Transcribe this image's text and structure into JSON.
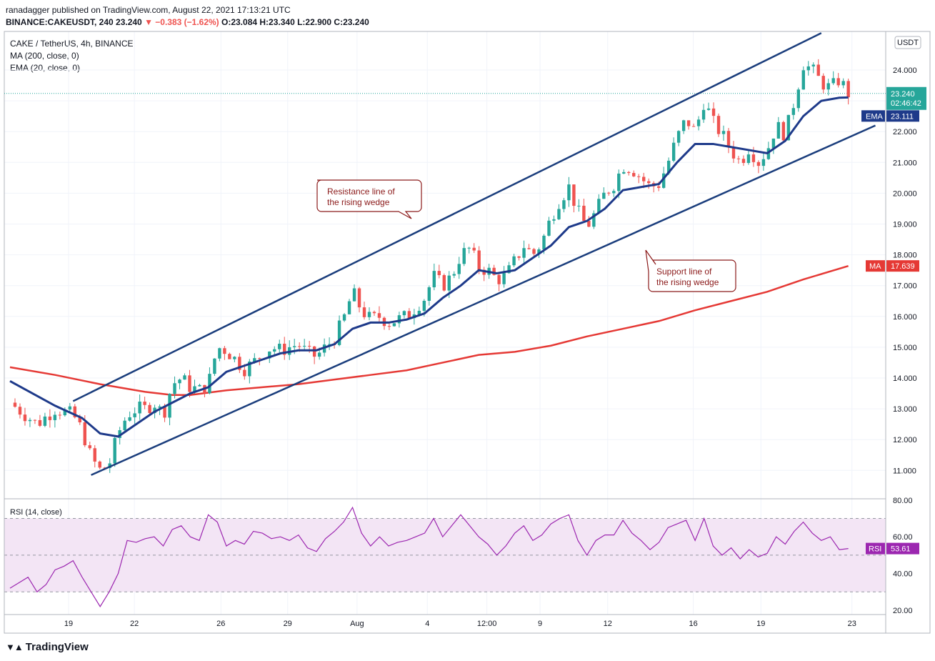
{
  "header": {
    "publish_line": "ranadagger published on TradingView.com, August 22, 2021 17:13:21 UTC",
    "symbol_line_prefix": "BINANCE:CAKEUSDT, 240  23.240 ",
    "change_text": "▼ −0.383 (−1.62%)",
    "ohlc_text": " O:23.084 H:23.340 L:22.900 C:23.240"
  },
  "legend": {
    "pair": "CAKE / TetherUS, 4h, BINANCE",
    "ma": "MA (200, close, 0)",
    "ema": "EMA (20, close, 0)"
  },
  "rsi_label": "RSI (14, close)",
  "brand": "TradingView",
  "colors": {
    "up": "#26a69a",
    "down": "#ef5350",
    "ema": "#1e3a8a",
    "ma": "#e53935",
    "rsi": "#9c27b0",
    "rsi_band": "#f3e5f5",
    "channel": "#1a3d7c",
    "note_border": "#8b1a1a"
  },
  "chart_data": [
    {
      "type": "candlestick",
      "yaxis_currency": "USDT",
      "yticks": [
        11.0,
        12.0,
        13.0,
        14.0,
        15.0,
        16.0,
        17.0,
        18.0,
        19.0,
        20.0,
        21.0,
        22.0,
        23.0,
        24.0
      ],
      "yticks_text": [
        "11.000",
        "12.000",
        "13.000",
        "14.000",
        "15.000",
        "16.000",
        "17.000",
        "18.000",
        "19.000",
        "20.000",
        "21.000",
        "22.000",
        "23.000",
        "24.000"
      ],
      "ylim": [
        10.2,
        25.0
      ],
      "xticks": [
        "19",
        "22",
        "26",
        "29",
        "Aug",
        "4",
        "12:00",
        "9",
        "12",
        "16",
        "19",
        "23"
      ],
      "price_tags": {
        "last": {
          "value": 23.24,
          "text": "23.240",
          "countdown": "02:46:42"
        },
        "ema": {
          "label": "EMA",
          "value": 23.111,
          "text": "23.111"
        },
        "ma": {
          "label": "MA",
          "value": 17.639,
          "text": "17.639"
        }
      },
      "close_path": [
        [
          0,
          13.2
        ],
        [
          3,
          12.5
        ],
        [
          5,
          13.0
        ],
        [
          7,
          12.8
        ],
        [
          8,
          12.3
        ],
        [
          9,
          11.4
        ],
        [
          10,
          11.0
        ],
        [
          11,
          11.2
        ],
        [
          12,
          12.2
        ],
        [
          13,
          12.8
        ],
        [
          14,
          13.0
        ],
        [
          15,
          13.0
        ],
        [
          16,
          13.2
        ],
        [
          17,
          12.8
        ],
        [
          18,
          13.8
        ],
        [
          19,
          14.0
        ],
        [
          20,
          13.7
        ],
        [
          21,
          13.6
        ],
        [
          22,
          13.8
        ],
        [
          23,
          15.0
        ],
        [
          24,
          14.9
        ],
        [
          25,
          14.6
        ],
        [
          26,
          14.3
        ],
        [
          27,
          14.5
        ],
        [
          28,
          14.8
        ],
        [
          29,
          15.0
        ],
        [
          30,
          14.9
        ],
        [
          31,
          15.0
        ],
        [
          32,
          15.1
        ],
        [
          33,
          14.8
        ],
        [
          34,
          14.7
        ],
        [
          35,
          15.0
        ],
        [
          36,
          15.3
        ],
        [
          37,
          15.9
        ],
        [
          38,
          16.8
        ],
        [
          39,
          16.2
        ],
        [
          40,
          15.9
        ],
        [
          41,
          16.0
        ],
        [
          42,
          15.8
        ],
        [
          43,
          15.9
        ],
        [
          44,
          16.0
        ],
        [
          45,
          16.3
        ],
        [
          46,
          16.6
        ],
        [
          47,
          17.3
        ],
        [
          48,
          17.0
        ],
        [
          49,
          17.3
        ],
        [
          50,
          18.0
        ],
        [
          51,
          18.2
        ],
        [
          52,
          17.6
        ],
        [
          53,
          17.5
        ],
        [
          54,
          17.2
        ],
        [
          55,
          17.3
        ],
        [
          56,
          17.8
        ],
        [
          57,
          18.3
        ],
        [
          58,
          18.0
        ],
        [
          59,
          18.4
        ],
        [
          60,
          19.2
        ],
        [
          61,
          19.8
        ],
        [
          62,
          20.2
        ],
        [
          63,
          19.4
        ],
        [
          64,
          18.9
        ],
        [
          65,
          19.4
        ],
        [
          66,
          20.0
        ],
        [
          67,
          20.3
        ],
        [
          68,
          20.9
        ],
        [
          69,
          20.8
        ],
        [
          70,
          20.5
        ],
        [
          71,
          20.2
        ],
        [
          72,
          20.3
        ],
        [
          73,
          21.0
        ],
        [
          74,
          21.8
        ],
        [
          75,
          22.4
        ],
        [
          76,
          22.0
        ],
        [
          77,
          23.0
        ],
        [
          78,
          22.3
        ],
        [
          79,
          21.9
        ],
        [
          80,
          21.4
        ],
        [
          81,
          21.0
        ],
        [
          82,
          21.5
        ],
        [
          83,
          21.0
        ],
        [
          84,
          21.4
        ],
        [
          85,
          22.2
        ],
        [
          86,
          21.9
        ],
        [
          87,
          23.0
        ],
        [
          88,
          24.2
        ],
        [
          89,
          24.0
        ],
        [
          90,
          23.6
        ],
        [
          91,
          23.4
        ],
        [
          92,
          23.7
        ],
        [
          93,
          23.24
        ]
      ],
      "ema20_path": [
        [
          0,
          13.9
        ],
        [
          5,
          13.1
        ],
        [
          8,
          12.7
        ],
        [
          10,
          12.2
        ],
        [
          12,
          12.1
        ],
        [
          14,
          12.5
        ],
        [
          16,
          12.9
        ],
        [
          18,
          13.2
        ],
        [
          20,
          13.5
        ],
        [
          22,
          13.7
        ],
        [
          24,
          14.2
        ],
        [
          26,
          14.4
        ],
        [
          28,
          14.6
        ],
        [
          30,
          14.8
        ],
        [
          32,
          14.9
        ],
        [
          34,
          14.9
        ],
        [
          36,
          15.1
        ],
        [
          38,
          15.6
        ],
        [
          40,
          15.8
        ],
        [
          42,
          15.8
        ],
        [
          44,
          15.9
        ],
        [
          46,
          16.1
        ],
        [
          48,
          16.6
        ],
        [
          50,
          17.0
        ],
        [
          52,
          17.5
        ],
        [
          54,
          17.4
        ],
        [
          56,
          17.5
        ],
        [
          58,
          17.9
        ],
        [
          60,
          18.3
        ],
        [
          62,
          18.9
        ],
        [
          64,
          19.1
        ],
        [
          66,
          19.5
        ],
        [
          68,
          20.1
        ],
        [
          70,
          20.2
        ],
        [
          72,
          20.3
        ],
        [
          74,
          21.0
        ],
        [
          76,
          21.6
        ],
        [
          78,
          21.6
        ],
        [
          80,
          21.5
        ],
        [
          82,
          21.4
        ],
        [
          84,
          21.3
        ],
        [
          86,
          21.7
        ],
        [
          88,
          22.5
        ],
        [
          90,
          23.0
        ],
        [
          92,
          23.1
        ],
        [
          93,
          23.111
        ]
      ],
      "ma200_path": [
        [
          0,
          14.35
        ],
        [
          5,
          14.1
        ],
        [
          10,
          13.8
        ],
        [
          15,
          13.55
        ],
        [
          18,
          13.45
        ],
        [
          20,
          13.45
        ],
        [
          24,
          13.6
        ],
        [
          28,
          13.7
        ],
        [
          32,
          13.8
        ],
        [
          36,
          13.95
        ],
        [
          40,
          14.1
        ],
        [
          44,
          14.25
        ],
        [
          48,
          14.5
        ],
        [
          52,
          14.75
        ],
        [
          56,
          14.85
        ],
        [
          60,
          15.05
        ],
        [
          64,
          15.35
        ],
        [
          68,
          15.6
        ],
        [
          72,
          15.85
        ],
        [
          76,
          16.2
        ],
        [
          80,
          16.5
        ],
        [
          84,
          16.8
        ],
        [
          88,
          17.2
        ],
        [
          93,
          17.639
        ]
      ],
      "trendlines": [
        {
          "name": "resistance",
          "from": [
            7,
            13.25
          ],
          "to": [
            90,
            25.2
          ]
        },
        {
          "name": "support",
          "from": [
            9,
            10.85
          ],
          "to": [
            96,
            22.2
          ]
        }
      ],
      "annotations": [
        {
          "name": "resistance-note",
          "lines": [
            "Resistance line of",
            "the rising wedge"
          ]
        },
        {
          "name": "support-note",
          "lines": [
            "Support line of",
            "the rising wedge"
          ]
        }
      ]
    },
    {
      "type": "line",
      "name": "RSI (14, close)",
      "ylim": [
        20,
        80
      ],
      "yticks": [
        20.0,
        40.0,
        60.0,
        80.0
      ],
      "yticks_text": [
        "20.00",
        "40.00",
        "60.00",
        "80.00"
      ],
      "band": [
        30,
        70
      ],
      "midline": 50,
      "last": {
        "label": "RSI",
        "value": 53.61,
        "text": "53.61"
      },
      "values": [
        [
          0,
          32
        ],
        [
          2,
          38
        ],
        [
          3,
          30
        ],
        [
          4,
          34
        ],
        [
          5,
          42
        ],
        [
          6,
          44
        ],
        [
          7,
          47
        ],
        [
          8,
          38
        ],
        [
          9,
          30
        ],
        [
          10,
          22
        ],
        [
          11,
          30
        ],
        [
          12,
          40
        ],
        [
          13,
          58
        ],
        [
          14,
          57
        ],
        [
          15,
          59
        ],
        [
          16,
          60
        ],
        [
          17,
          55
        ],
        [
          18,
          64
        ],
        [
          19,
          66
        ],
        [
          20,
          60
        ],
        [
          21,
          58
        ],
        [
          22,
          72
        ],
        [
          23,
          68
        ],
        [
          24,
          55
        ],
        [
          25,
          58
        ],
        [
          26,
          56
        ],
        [
          27,
          63
        ],
        [
          28,
          62
        ],
        [
          29,
          59
        ],
        [
          30,
          60
        ],
        [
          31,
          58
        ],
        [
          32,
          61
        ],
        [
          33,
          54
        ],
        [
          34,
          52
        ],
        [
          35,
          59
        ],
        [
          36,
          63
        ],
        [
          37,
          68
        ],
        [
          38,
          76
        ],
        [
          39,
          62
        ],
        [
          40,
          55
        ],
        [
          41,
          60
        ],
        [
          42,
          55
        ],
        [
          43,
          57
        ],
        [
          44,
          58
        ],
        [
          45,
          60
        ],
        [
          46,
          62
        ],
        [
          47,
          70
        ],
        [
          48,
          60
        ],
        [
          49,
          66
        ],
        [
          50,
          72
        ],
        [
          51,
          66
        ],
        [
          52,
          60
        ],
        [
          53,
          56
        ],
        [
          54,
          50
        ],
        [
          55,
          55
        ],
        [
          56,
          62
        ],
        [
          57,
          66
        ],
        [
          58,
          58
        ],
        [
          59,
          61
        ],
        [
          60,
          67
        ],
        [
          61,
          70
        ],
        [
          62,
          72
        ],
        [
          63,
          58
        ],
        [
          64,
          50
        ],
        [
          65,
          58
        ],
        [
          66,
          61
        ],
        [
          67,
          61
        ],
        [
          68,
          69
        ],
        [
          69,
          62
        ],
        [
          70,
          58
        ],
        [
          71,
          53
        ],
        [
          72,
          57
        ],
        [
          73,
          65
        ],
        [
          74,
          67
        ],
        [
          75,
          69
        ],
        [
          76,
          58
        ],
        [
          77,
          70
        ],
        [
          78,
          55
        ],
        [
          79,
          50
        ],
        [
          80,
          54
        ],
        [
          81,
          48
        ],
        [
          82,
          53
        ],
        [
          83,
          49
        ],
        [
          84,
          51
        ],
        [
          85,
          60
        ],
        [
          86,
          56
        ],
        [
          87,
          63
        ],
        [
          88,
          68
        ],
        [
          89,
          62
        ],
        [
          90,
          58
        ],
        [
          91,
          60
        ],
        [
          92,
          53
        ],
        [
          93,
          53.61
        ]
      ]
    }
  ]
}
